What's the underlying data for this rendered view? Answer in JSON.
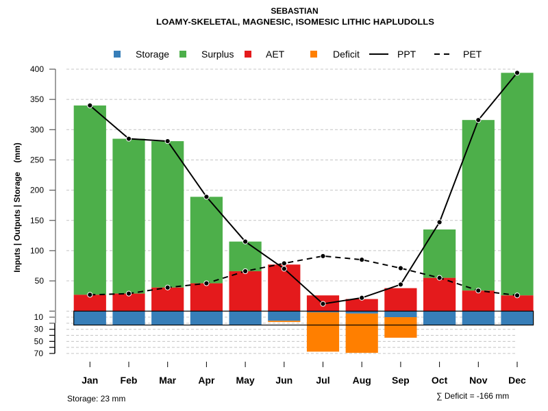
{
  "chart_data": {
    "type": "bar",
    "title": "SEBASTIAN",
    "subtitle": "LOAMY-SKELETAL, MAGNESIC, ISOMESIC LITHIC HAPLUDOLLS",
    "xlabel": "",
    "ylabel": "Inputs | Outputs | Storage    (mm)",
    "categories": [
      "Jan",
      "Feb",
      "Mar",
      "Apr",
      "May",
      "Jun",
      "Jul",
      "Aug",
      "Sep",
      "Oct",
      "Nov",
      "Dec"
    ],
    "ylim": [
      -70,
      400
    ],
    "grid": true,
    "y_axis": {
      "upper_ticks": [
        50,
        100,
        150,
        200,
        250,
        300,
        350,
        400
      ],
      "lower_ticks": [
        0,
        10,
        20,
        30,
        40,
        50,
        60,
        70
      ],
      "lower_labels": [
        10,
        30,
        50,
        70
      ]
    },
    "legend": {
      "position": "top",
      "entries": [
        {
          "label": "Storage",
          "symbol": "square",
          "color": "#377EB8"
        },
        {
          "label": "Surplus",
          "symbol": "square",
          "color": "#4DAF4A"
        },
        {
          "label": "AET",
          "symbol": "square",
          "color": "#E41A1C"
        },
        {
          "label": "Deficit",
          "symbol": "square",
          "color": "#FF7F00"
        },
        {
          "label": "PPT",
          "symbol": "solid-line",
          "color": "#000000"
        },
        {
          "label": "PET",
          "symbol": "dashed-line",
          "color": "#000000"
        }
      ]
    },
    "series": [
      {
        "name": "Storage",
        "kind": "bar-below-zero",
        "color": "#377EB8",
        "values": [
          23,
          23,
          23,
          23,
          23,
          16,
          2,
          4,
          10,
          23,
          23,
          23
        ]
      },
      {
        "name": "Surplus",
        "kind": "bar-stacked-on-AET",
        "color": "#4DAF4A",
        "values": [
          313,
          256,
          242,
          143,
          49,
          0,
          0,
          0,
          0,
          80,
          282,
          368
        ]
      },
      {
        "name": "AET",
        "kind": "bar",
        "color": "#E41A1C",
        "values": [
          27,
          29,
          39,
          46,
          66,
          77,
          26,
          20,
          38,
          55,
          34,
          26
        ]
      },
      {
        "name": "Deficit",
        "kind": "bar-below-storage",
        "color": "#FF7F00",
        "values": [
          0,
          0,
          0,
          0,
          0,
          2,
          65,
          65,
          34,
          0,
          0,
          0
        ]
      },
      {
        "name": "PPT",
        "kind": "line",
        "color": "#000000",
        "values": [
          340,
          285,
          281,
          189,
          115,
          70,
          12,
          22,
          44,
          147,
          316,
          394
        ]
      },
      {
        "name": "PET",
        "kind": "dashed-line",
        "color": "#000000",
        "values": [
          27,
          29,
          39,
          46,
          66,
          79,
          91,
          85,
          71,
          55,
          34,
          26
        ]
      }
    ],
    "storage_capacity": 23,
    "total_deficit": -166,
    "annotations": {
      "storage": "Storage: 23 mm",
      "deficit": "∑ Deficit = -166 mm"
    }
  }
}
